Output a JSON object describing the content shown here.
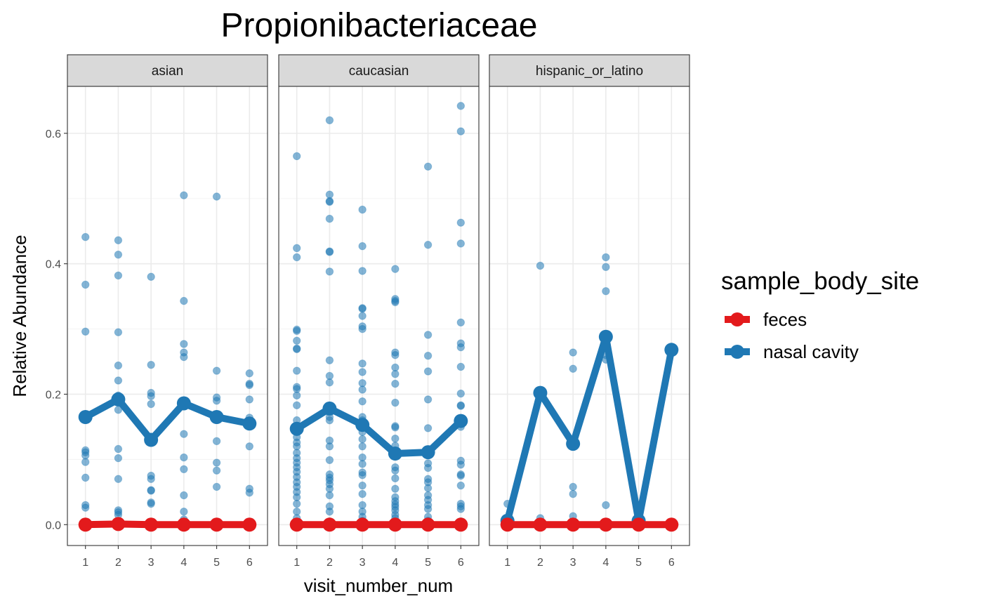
{
  "chart_data": {
    "type": "line",
    "title": "Propionibacteriaceae",
    "xlabel": "visit_number_num",
    "ylabel": "Relative Abundance",
    "x_ticks": [
      1,
      2,
      3,
      4,
      5,
      6
    ],
    "y_ticks": [
      0.0,
      0.2,
      0.4,
      0.6
    ],
    "y_tick_labels": [
      "0.0",
      "0.2",
      "0.4",
      "0.6"
    ],
    "xlim": [
      0.45,
      6.55
    ],
    "ylim": [
      -0.032,
      0.672
    ],
    "grid": true,
    "legend": {
      "title": "sample_body_site",
      "position": "right",
      "entries": [
        {
          "name": "feces",
          "color": "#e31a1c"
        },
        {
          "name": "nasal cavity",
          "color": "#1f78b4"
        }
      ]
    },
    "colors": {
      "feces": "#e31a1c",
      "nasal cavity": "#1f78b4"
    },
    "facets": [
      {
        "name": "asian",
        "series": [
          {
            "name": "feces",
            "x": [
              1,
              2,
              3,
              4,
              5,
              6
            ],
            "values": [
              0.0,
              0.001,
              0.0,
              0.0,
              0.0,
              0.0
            ]
          },
          {
            "name": "nasal cavity",
            "x": [
              1,
              2,
              3,
              4,
              5,
              6
            ],
            "values": [
              0.165,
              0.192,
              0.13,
              0.186,
              0.165,
              0.155
            ]
          }
        ],
        "points": [
          {
            "x": 1,
            "y": [
              0.441,
              0.368,
              0.296,
              0.114,
              0.111,
              0.106,
              0.096,
              0.072,
              0.03,
              0.026,
              0.002,
              0.0,
              0.0
            ]
          },
          {
            "x": 2,
            "y": [
              0.436,
              0.414,
              0.382,
              0.295,
              0.244,
              0.221,
              0.198,
              0.176,
              0.116,
              0.102,
              0.07,
              0.022,
              0.019,
              0.015,
              0.005,
              0.0
            ]
          },
          {
            "x": 3,
            "y": [
              0.38,
              0.245,
              0.202,
              0.197,
              0.185,
              0.075,
              0.07,
              0.053,
              0.052,
              0.034,
              0.032,
              0.0
            ]
          },
          {
            "x": 4,
            "y": [
              0.505,
              0.343,
              0.277,
              0.264,
              0.257,
              0.139,
              0.103,
              0.085,
              0.045,
              0.02,
              0.008,
              0.0
            ]
          },
          {
            "x": 5,
            "y": [
              0.503,
              0.236,
              0.195,
              0.19,
              0.128,
              0.095,
              0.083,
              0.058,
              0.002,
              0.0
            ]
          },
          {
            "x": 6,
            "y": [
              0.232,
              0.216,
              0.214,
              0.192,
              0.164,
              0.12,
              0.055,
              0.049,
              0.0
            ]
          }
        ]
      },
      {
        "name": "caucasian",
        "series": [
          {
            "name": "feces",
            "x": [
              1,
              2,
              3,
              4,
              5,
              6
            ],
            "values": [
              0.0,
              0.0,
              0.0,
              0.0,
              0.0,
              0.0
            ]
          },
          {
            "name": "nasal cavity",
            "x": [
              1,
              2,
              3,
              4,
              5,
              6
            ],
            "values": [
              0.147,
              0.178,
              0.153,
              0.109,
              0.111,
              0.159
            ]
          }
        ],
        "points": [
          {
            "x": 1,
            "y": [
              0.565,
              0.424,
              0.41,
              0.299,
              0.297,
              0.282,
              0.27,
              0.269,
              0.236,
              0.211,
              0.208,
              0.198,
              0.183,
              0.16,
              0.148,
              0.142,
              0.134,
              0.126,
              0.12,
              0.11,
              0.102,
              0.095,
              0.088,
              0.081,
              0.073,
              0.065,
              0.058,
              0.05,
              0.042,
              0.032,
              0.02,
              0.01,
              0.004,
              0.0
            ]
          },
          {
            "x": 2,
            "y": [
              0.62,
              0.506,
              0.496,
              0.495,
              0.469,
              0.419,
              0.418,
              0.388,
              0.252,
              0.228,
              0.218,
              0.175,
              0.165,
              0.16,
              0.129,
              0.12,
              0.099,
              0.077,
              0.072,
              0.068,
              0.062,
              0.055,
              0.045,
              0.028,
              0.02,
              0.005,
              0.0
            ]
          },
          {
            "x": 3,
            "y": [
              0.483,
              0.427,
              0.389,
              0.332,
              0.331,
              0.32,
              0.304,
              0.3,
              0.247,
              0.234,
              0.217,
              0.207,
              0.189,
              0.165,
              0.16,
              0.142,
              0.131,
              0.12,
              0.103,
              0.093,
              0.08,
              0.076,
              0.06,
              0.047,
              0.03,
              0.02,
              0.012,
              0.006,
              0.0
            ]
          },
          {
            "x": 4,
            "y": [
              0.392,
              0.346,
              0.343,
              0.341,
              0.264,
              0.26,
              0.241,
              0.231,
              0.216,
              0.187,
              0.151,
              0.149,
              0.132,
              0.121,
              0.088,
              0.083,
              0.071,
              0.055,
              0.042,
              0.036,
              0.031,
              0.027,
              0.022,
              0.015,
              0.01,
              0.004,
              0.0
            ]
          },
          {
            "x": 5,
            "y": [
              0.549,
              0.429,
              0.291,
              0.259,
              0.235,
              0.192,
              0.148,
              0.094,
              0.087,
              0.07,
              0.065,
              0.056,
              0.045,
              0.038,
              0.03,
              0.024,
              0.012,
              0.006,
              0.0
            ]
          },
          {
            "x": 6,
            "y": [
              0.642,
              0.603,
              0.463,
              0.431,
              0.31,
              0.278,
              0.272,
              0.242,
              0.201,
              0.183,
              0.182,
              0.163,
              0.15,
              0.098,
              0.092,
              0.077,
              0.075,
              0.06,
              0.032,
              0.028,
              0.024,
              0.005,
              0.0
            ]
          }
        ]
      },
      {
        "name": "hispanic_or_latino",
        "series": [
          {
            "name": "feces",
            "x": [
              1,
              2,
              3,
              4,
              5,
              6
            ],
            "values": [
              0.0,
              0.0,
              0.0,
              0.0,
              0.0,
              0.0
            ]
          },
          {
            "name": "nasal cavity",
            "x": [
              1,
              2,
              3,
              4,
              5,
              6
            ],
            "values": [
              0.006,
              0.202,
              0.124,
              0.288,
              0.006,
              0.268
            ]
          }
        ],
        "points": [
          {
            "x": 1,
            "y": [
              0.032,
              0.0
            ]
          },
          {
            "x": 2,
            "y": [
              0.397,
              0.01,
              0.0
            ]
          },
          {
            "x": 3,
            "y": [
              0.264,
              0.239,
              0.058,
              0.047,
              0.013,
              0.0
            ]
          },
          {
            "x": 4,
            "y": [
              0.41,
              0.395,
              0.358,
              0.26,
              0.253,
              0.03,
              0.0
            ]
          },
          {
            "x": 5,
            "y": [
              0.0
            ]
          },
          {
            "x": 6,
            "y": [
              0.0
            ]
          }
        ]
      }
    ]
  }
}
